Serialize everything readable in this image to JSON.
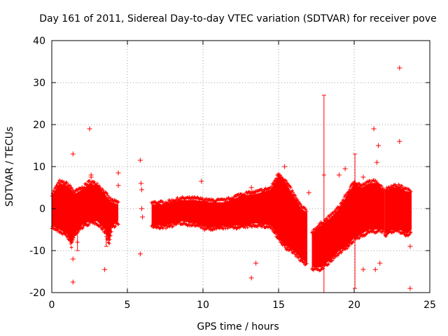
{
  "chart_data": {
    "type": "scatter",
    "title": "Day 161 of 2011, Sidereal Day-to-day VTEC variation (SDTVAR) for receiver pove",
    "xlabel": "GPS time / hours",
    "ylabel": "SDTVAR / TECUs",
    "xlim": [
      0,
      25
    ],
    "ylim": [
      -20,
      40
    ],
    "xticks": [
      0,
      5,
      10,
      15,
      20,
      25
    ],
    "yticks": [
      -20,
      -10,
      0,
      10,
      20,
      30,
      40
    ],
    "grid": true,
    "marker": "+",
    "color": "#ff0000",
    "bands": [
      {
        "x": [
          0.0,
          0.5,
          1.0,
          1.3,
          1.5,
          2.0,
          2.5,
          3.0,
          3.5,
          3.8,
          4.0,
          4.4
        ],
        "lo": [
          -4,
          -5,
          -6,
          -8.5,
          -6,
          -4,
          -3,
          -3,
          -5,
          -8,
          -4,
          -3
        ],
        "hi": [
          3,
          6,
          5.5,
          4.5,
          3.5,
          4.5,
          6,
          5.5,
          3.5,
          2,
          1.5,
          1
        ]
      },
      {
        "x": [
          6.6,
          7.5,
          8.5,
          9.5,
          10.5,
          11.5,
          12.5,
          13.5,
          14.5,
          15.0,
          15.5,
          16.0,
          16.5,
          16.9
        ],
        "lo": [
          -4,
          -4,
          -3,
          -3.5,
          -4.5,
          -4,
          -4,
          -3.5,
          -4,
          -7,
          -9,
          -10,
          -12,
          -13
        ],
        "hi": [
          1,
          1,
          2,
          2,
          1.5,
          1.5,
          3,
          3.5,
          4.5,
          8,
          6,
          3,
          0,
          -1
        ]
      },
      {
        "x": [
          17.2,
          17.8,
          18.5,
          19.0,
          19.5,
          20.0,
          20.5,
          21.0,
          21.5,
          22.0
        ],
        "lo": [
          -14,
          -14,
          -12,
          -10,
          -9,
          -7,
          -6,
          -5,
          -5,
          -5
        ],
        "hi": [
          -6,
          -4,
          -2,
          0,
          3,
          6,
          5,
          6,
          6,
          4
        ]
      },
      {
        "x": [
          22.0,
          22.5,
          23.0,
          23.5,
          23.8
        ],
        "lo": [
          -6,
          -5,
          -5,
          -6,
          -5
        ],
        "hi": [
          4,
          5,
          5,
          4,
          4
        ]
      }
    ],
    "errorbars": [
      {
        "x": 18.0,
        "y": 8,
        "lo": -20,
        "hi": 27
      },
      {
        "x": 20.05,
        "y": 0,
        "lo": -19,
        "hi": 13
      },
      {
        "x": 1.7,
        "y": -8,
        "lo": -10,
        "hi": -5
      },
      {
        "x": 3.6,
        "y": -6,
        "lo": -9,
        "hi": -3
      }
    ],
    "outliers": [
      {
        "x": 1.4,
        "y": 13
      },
      {
        "x": 1.4,
        "y": -17.5
      },
      {
        "x": 1.4,
        "y": -12
      },
      {
        "x": 2.5,
        "y": 19
      },
      {
        "x": 2.6,
        "y": 8
      },
      {
        "x": 2.6,
        "y": 7.5
      },
      {
        "x": 3.5,
        "y": -14.5
      },
      {
        "x": 4.4,
        "y": 8.5
      },
      {
        "x": 4.4,
        "y": 5.5
      },
      {
        "x": 5.85,
        "y": 11.5
      },
      {
        "x": 5.85,
        "y": -10.8
      },
      {
        "x": 5.9,
        "y": 6
      },
      {
        "x": 5.95,
        "y": 4.5
      },
      {
        "x": 5.95,
        "y": 0
      },
      {
        "x": 6.0,
        "y": -2
      },
      {
        "x": 9.9,
        "y": 6.5
      },
      {
        "x": 10.1,
        "y": -5
      },
      {
        "x": 13.2,
        "y": 5
      },
      {
        "x": 13.2,
        "y": -16.5
      },
      {
        "x": 13.5,
        "y": -13
      },
      {
        "x": 15.4,
        "y": 10
      },
      {
        "x": 17.0,
        "y": 3.8
      },
      {
        "x": 19.0,
        "y": 8
      },
      {
        "x": 19.4,
        "y": 9.5
      },
      {
        "x": 20.6,
        "y": 7.5
      },
      {
        "x": 20.6,
        "y": -14.5
      },
      {
        "x": 21.3,
        "y": 19
      },
      {
        "x": 21.4,
        "y": -14.5
      },
      {
        "x": 21.5,
        "y": 11
      },
      {
        "x": 21.6,
        "y": 15
      },
      {
        "x": 21.7,
        "y": -13
      },
      {
        "x": 23.0,
        "y": 33.5
      },
      {
        "x": 23.0,
        "y": 16
      },
      {
        "x": 23.7,
        "y": -19
      },
      {
        "x": 23.7,
        "y": -9
      }
    ]
  }
}
